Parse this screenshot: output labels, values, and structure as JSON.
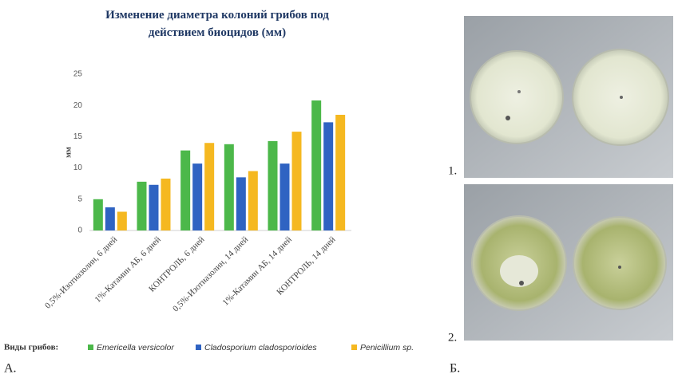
{
  "chart_data": {
    "type": "bar",
    "title": "Изменение диаметра колоний грибов под действием биоцидов (мм)",
    "y_label": "мм",
    "legend_title": "Виды грибов:",
    "categories": [
      "0,5%-Изотиазолин, 6 дней",
      "1%-Катамин АБ, 6 дней",
      "КОНТРОЛЬ, 6 дней",
      "0,5%-Изотиазолин, 14 дней",
      "1%-Катамин АБ, 14 дней",
      "КОНТРОЛЬ, 14 дней"
    ],
    "series": [
      {
        "name": "Emericella versicolor",
        "color": "#4cb84a",
        "values": [
          5.0,
          7.8,
          12.8,
          13.8,
          14.3,
          20.8
        ]
      },
      {
        "name": "Cladosporium cladosporioides",
        "color": "#2f63c2",
        "values": [
          3.7,
          7.3,
          10.7,
          8.5,
          10.7,
          17.3
        ]
      },
      {
        "name": "Penicillium sp.",
        "color": "#f5b820",
        "values": [
          3.0,
          8.3,
          14.0,
          9.5,
          15.8,
          18.5
        ]
      }
    ],
    "ylim": [
      0,
      25
    ],
    "yticks": [
      0,
      5,
      10,
      15,
      20,
      25
    ],
    "grid": false
  },
  "figure": {
    "panel_a": "А.",
    "panel_b": "Б.",
    "photo_1": "1.",
    "photo_2": "2."
  }
}
